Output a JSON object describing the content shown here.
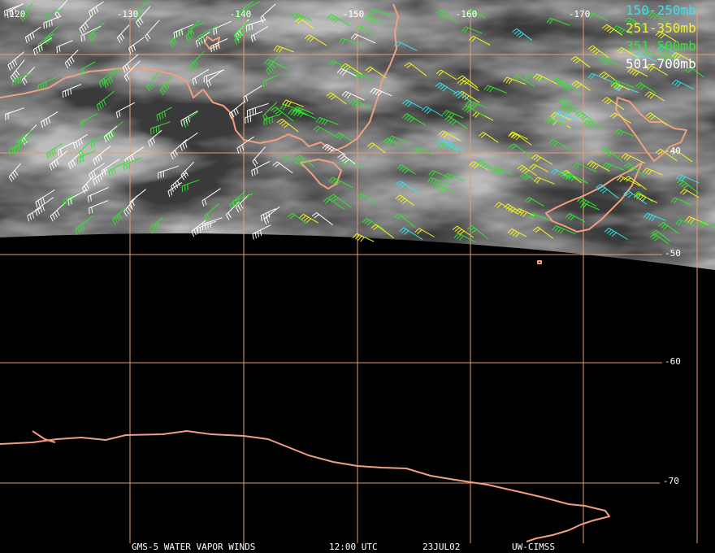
{
  "longitude_labels": [
    "-120",
    "-130",
    "-140",
    "-150",
    "-160",
    "-170"
  ],
  "latitude_labels": [
    "-40",
    "-50",
    "-60",
    "-70"
  ],
  "legend": [
    {
      "label": "150-250mb",
      "color": "#2ee6f0"
    },
    {
      "label": "251-350mb",
      "color": "#f5f51e"
    },
    {
      "label": "351-500mb",
      "color": "#2ee62e"
    },
    {
      "label": "501-700mb",
      "color": "#ffffff"
    }
  ],
  "footer": [
    "GMS-5 WATER VAPOR WINDS",
    "12:00 UTC",
    "23JUL02",
    "UW-CIMSS"
  ]
}
